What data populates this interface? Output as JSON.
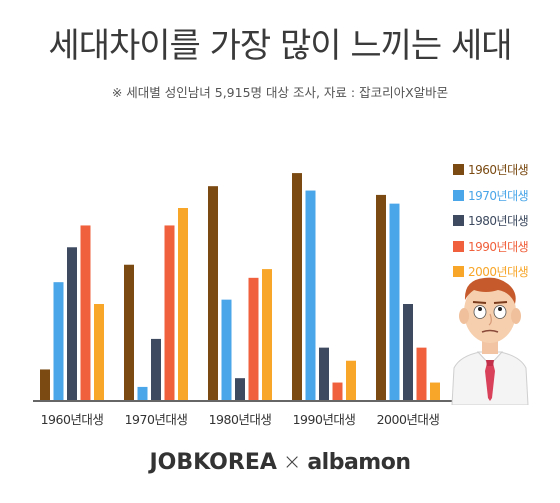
{
  "header": {
    "title": "세대차이를 가장 많이 느끼는 세대",
    "subtitle": "※ 세대별 성인남녀 5,915명 대상 조사, 자료 : 잡코리아X알바몬"
  },
  "footer": {
    "brand1": "JOBKOREA",
    "separator": "×",
    "brand2": "albamon"
  },
  "colors": {
    "s1960": "#7a4a12",
    "s1970": "#4aa6e8",
    "s1980": "#3d4a60",
    "s1990": "#f0603c",
    "s2000": "#f7a62a",
    "axis": "#333333"
  },
  "chart_data": {
    "type": "bar",
    "categories": [
      "1960년대생",
      "1970년대생",
      "1980년대생",
      "1990년대생",
      "2000년대생"
    ],
    "series": [
      {
        "name": "1960년대생",
        "color": "#7a4a12",
        "values": [
          7,
          31,
          49,
          52,
          47
        ]
      },
      {
        "name": "1970년대생",
        "color": "#4aa6e8",
        "values": [
          27,
          3,
          23,
          48,
          45
        ]
      },
      {
        "name": "1980년대생",
        "color": "#3d4a60",
        "values": [
          35,
          14,
          5,
          12,
          22
        ]
      },
      {
        "name": "1990년대생",
        "color": "#f0603c",
        "values": [
          40,
          40,
          28,
          4,
          12
        ]
      },
      {
        "name": "2000년대생",
        "color": "#f7a62a",
        "values": [
          22,
          44,
          30,
          9,
          4
        ]
      }
    ],
    "ylim": [
      0,
      55
    ],
    "legend_position": "right",
    "grid": false
  }
}
